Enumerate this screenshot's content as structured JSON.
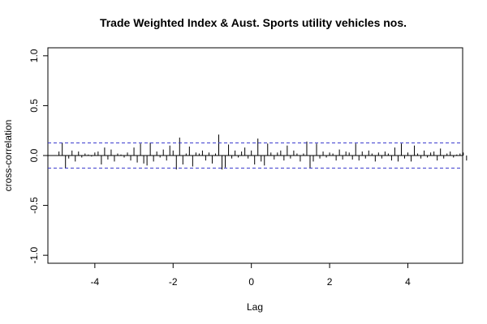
{
  "chart_data": {
    "type": "bar",
    "title": "Trade Weighted Index & Aust. Sports utility vehicles nos.",
    "xlabel": "Lag",
    "ylabel": "cross-correlation",
    "xlim": [
      -5.2,
      5.4
    ],
    "ylim": [
      -1.08,
      1.08
    ],
    "x_ticks": [
      -4,
      -2,
      0,
      2,
      4
    ],
    "x_tick_labels": [
      "-4",
      "-2",
      "0",
      "2",
      "4"
    ],
    "y_ticks": [
      -1.0,
      -0.5,
      0.0,
      0.5,
      1.0
    ],
    "y_tick_labels": [
      "-1.0",
      "-0.5",
      "0.0",
      "0.5",
      "1.0"
    ],
    "confidence_bound": 0.127,
    "lag_step": 0.0833333,
    "lag_start": -4.916667,
    "values": [
      0.04,
      0.13,
      -0.13,
      -0.03,
      0.05,
      -0.06,
      0.04,
      -0.02,
      0.02,
      0.01,
      -0.01,
      0.03,
      0.04,
      -0.09,
      0.08,
      -0.04,
      0.06,
      -0.06,
      0.02,
      0.01,
      -0.02,
      0.03,
      -0.05,
      0.08,
      -0.07,
      0.12,
      -0.08,
      -0.1,
      0.13,
      -0.06,
      0.04,
      -0.02,
      0.06,
      -0.05,
      0.1,
      0.05,
      -0.14,
      0.18,
      -0.09,
      0.02,
      0.09,
      -0.11,
      0.03,
      0.02,
      0.05,
      -0.05,
      0.03,
      -0.08,
      0.02,
      0.21,
      -0.14,
      -0.12,
      0.11,
      -0.03,
      0.05,
      -0.02,
      0.04,
      0.08,
      -0.03,
      0.05,
      -0.09,
      0.17,
      -0.06,
      -0.1,
      0.12,
      0.03,
      -0.04,
      0.03,
      0.05,
      -0.05,
      0.1,
      -0.03,
      0.05,
      0.02,
      -0.06,
      0.02,
      0.14,
      -0.13,
      -0.06,
      0.12,
      -0.03,
      0.04,
      -0.02,
      0.03,
      0.02,
      -0.05,
      0.06,
      -0.04,
      0.04,
      0.03,
      -0.04,
      0.12,
      -0.05,
      0.04,
      -0.03,
      0.05,
      0.02,
      -0.06,
      0.03,
      -0.03,
      0.04,
      0.02,
      -0.05,
      0.08,
      -0.06,
      0.12,
      -0.03,
      0.03,
      -0.06,
      0.1,
      0.02,
      -0.03,
      0.05,
      -0.02,
      0.03,
      0.04,
      -0.05,
      0.07,
      -0.03,
      0.02,
      0.04,
      -0.02,
      0.01,
      0.02,
      0.03,
      -0.05
    ],
    "colors": {
      "bars": "#000000",
      "bounds": "#3333cc",
      "zero_line": "#000000",
      "frame": "#000000"
    },
    "grid": false,
    "legend": "none"
  }
}
